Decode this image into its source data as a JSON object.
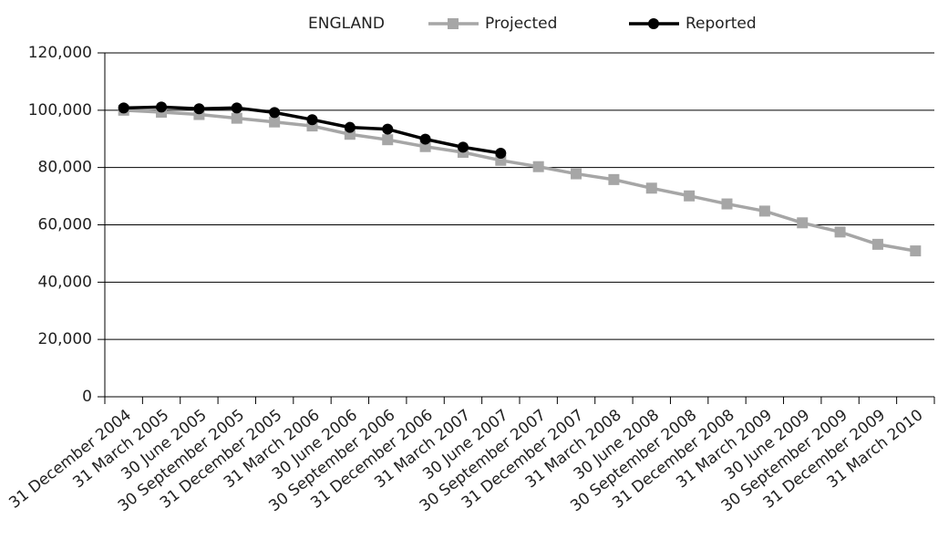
{
  "chart_data": {
    "type": "line",
    "title": "ENGLAND",
    "categories": [
      "31 December 2004",
      "31 March 2005",
      "30 June 2005",
      "30 September 2005",
      "31 December 2005",
      "31 March 2006",
      "30 June 2006",
      "30 September 2006",
      "31 December 2006",
      "31 March 2007",
      "30 June 2007",
      "30 September 2007",
      "31 December 2007",
      "31 March 2008",
      "30 June 2008",
      "30 September 2008",
      "31 December 2008",
      "31 March 2009",
      "30 June 2009",
      "30 September 2009",
      "31 December 2009",
      "31 March 2010"
    ],
    "series": [
      {
        "name": "Projected",
        "color": "#a6a6a6",
        "marker": "square",
        "values": [
          100000,
          99300,
          98500,
          97200,
          95900,
          94500,
          91600,
          89700,
          87300,
          85300,
          82500,
          80300,
          77800,
          75800,
          72800,
          70100,
          67300,
          64800,
          60700,
          57500,
          53200,
          50900
        ]
      },
      {
        "name": "Reported",
        "color": "#000000",
        "marker": "circle",
        "values": [
          100800,
          101100,
          100500,
          100800,
          99200,
          96700,
          94000,
          93400,
          89900,
          87100,
          85000,
          null,
          null,
          null,
          null,
          null,
          null,
          null,
          null,
          null,
          null,
          null
        ]
      }
    ],
    "ylim": [
      0,
      120000
    ],
    "yticks": [
      0,
      {
        "value": 20000,
        "label": "20,000"
      },
      {
        "value": 40000,
        "label": "40,000"
      },
      {
        "value": 60000,
        "label": "60,000"
      },
      {
        "value": 80000,
        "label": "80,000"
      },
      {
        "value": 100000,
        "label": "100,000"
      },
      {
        "value": 120000,
        "label": "120,000"
      }
    ],
    "grid": true,
    "legend": "top"
  }
}
